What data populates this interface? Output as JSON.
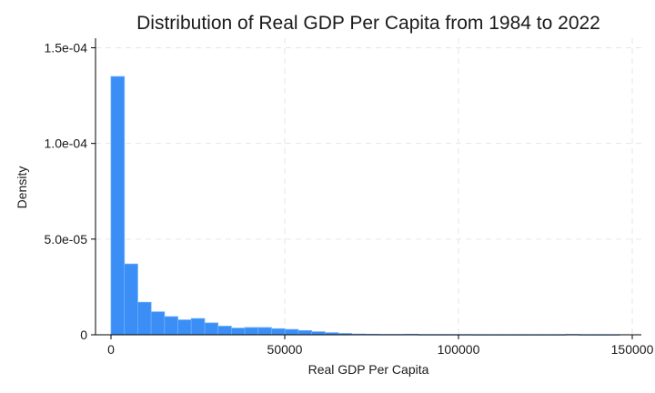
{
  "chart_data": {
    "type": "bar",
    "title": "Distribution of Real GDP Per Capita from 1984 to 2022",
    "xlabel": "Real GDP Per Capita",
    "ylabel": "Density",
    "xlim": [
      -5000,
      150000
    ],
    "ylim": [
      0,
      0.000155
    ],
    "x_ticks": [
      0,
      50000,
      100000,
      150000
    ],
    "x_tick_labels": [
      "0",
      "50000",
      "100000",
      "150000"
    ],
    "y_ticks": [
      0,
      5e-05,
      0.0001,
      0.00015
    ],
    "y_tick_labels": [
      "0",
      "5.0e-05",
      "1.0e-04",
      "1.5e-04"
    ],
    "grid": true,
    "bar_color": "#3a8ef5",
    "bins": [
      {
        "x0": 0,
        "x1": 3850,
        "value": 0.000135
      },
      {
        "x0": 3850,
        "x1": 7700,
        "value": 3.7e-05
      },
      {
        "x0": 7700,
        "x1": 11550,
        "value": 1.7e-05
      },
      {
        "x0": 11550,
        "x1": 15400,
        "value": 1.2e-05
      },
      {
        "x0": 15400,
        "x1": 19250,
        "value": 9.5e-06
      },
      {
        "x0": 19250,
        "x1": 23100,
        "value": 7.8e-06
      },
      {
        "x0": 23100,
        "x1": 26950,
        "value": 8.5e-06
      },
      {
        "x0": 26950,
        "x1": 30800,
        "value": 6.2e-06
      },
      {
        "x0": 30800,
        "x1": 34650,
        "value": 4.5e-06
      },
      {
        "x0": 34650,
        "x1": 38500,
        "value": 3.5e-06
      },
      {
        "x0": 38500,
        "x1": 42350,
        "value": 3.8e-06
      },
      {
        "x0": 42350,
        "x1": 46200,
        "value": 3.8e-06
      },
      {
        "x0": 46200,
        "x1": 50050,
        "value": 3.2e-06
      },
      {
        "x0": 50050,
        "x1": 53900,
        "value": 2.8e-06
      },
      {
        "x0": 53900,
        "x1": 57750,
        "value": 2.2e-06
      },
      {
        "x0": 57750,
        "x1": 61600,
        "value": 1.6e-06
      },
      {
        "x0": 61600,
        "x1": 65450,
        "value": 1.1e-06
      },
      {
        "x0": 65450,
        "x1": 69300,
        "value": 7e-07
      },
      {
        "x0": 69300,
        "x1": 73150,
        "value": 4e-07
      },
      {
        "x0": 73150,
        "x1": 77000,
        "value": 3e-07
      },
      {
        "x0": 77000,
        "x1": 80850,
        "value": 2e-07
      },
      {
        "x0": 80850,
        "x1": 84700,
        "value": 2e-07
      },
      {
        "x0": 84700,
        "x1": 88550,
        "value": 3e-07
      },
      {
        "x0": 88550,
        "x1": 92400,
        "value": 1e-07
      },
      {
        "x0": 92400,
        "x1": 96250,
        "value": 1e-07
      },
      {
        "x0": 96250,
        "x1": 100100,
        "value": 1e-07
      },
      {
        "x0": 100100,
        "x1": 103950,
        "value": 1e-07
      },
      {
        "x0": 103950,
        "x1": 107800,
        "value": 5e-08
      },
      {
        "x0": 107800,
        "x1": 111650,
        "value": 5e-08
      },
      {
        "x0": 111650,
        "x1": 115500,
        "value": 5e-08
      },
      {
        "x0": 115500,
        "x1": 119350,
        "value": 5e-08
      },
      {
        "x0": 119350,
        "x1": 123200,
        "value": 5e-08
      },
      {
        "x0": 123200,
        "x1": 127050,
        "value": 5e-08
      },
      {
        "x0": 127050,
        "x1": 130900,
        "value": 5e-08
      },
      {
        "x0": 130900,
        "x1": 134750,
        "value": 2e-07
      },
      {
        "x0": 134750,
        "x1": 138600,
        "value": 5e-08
      },
      {
        "x0": 138600,
        "x1": 142450,
        "value": 5e-08
      },
      {
        "x0": 142450,
        "x1": 146300,
        "value": 5e-08
      }
    ]
  }
}
